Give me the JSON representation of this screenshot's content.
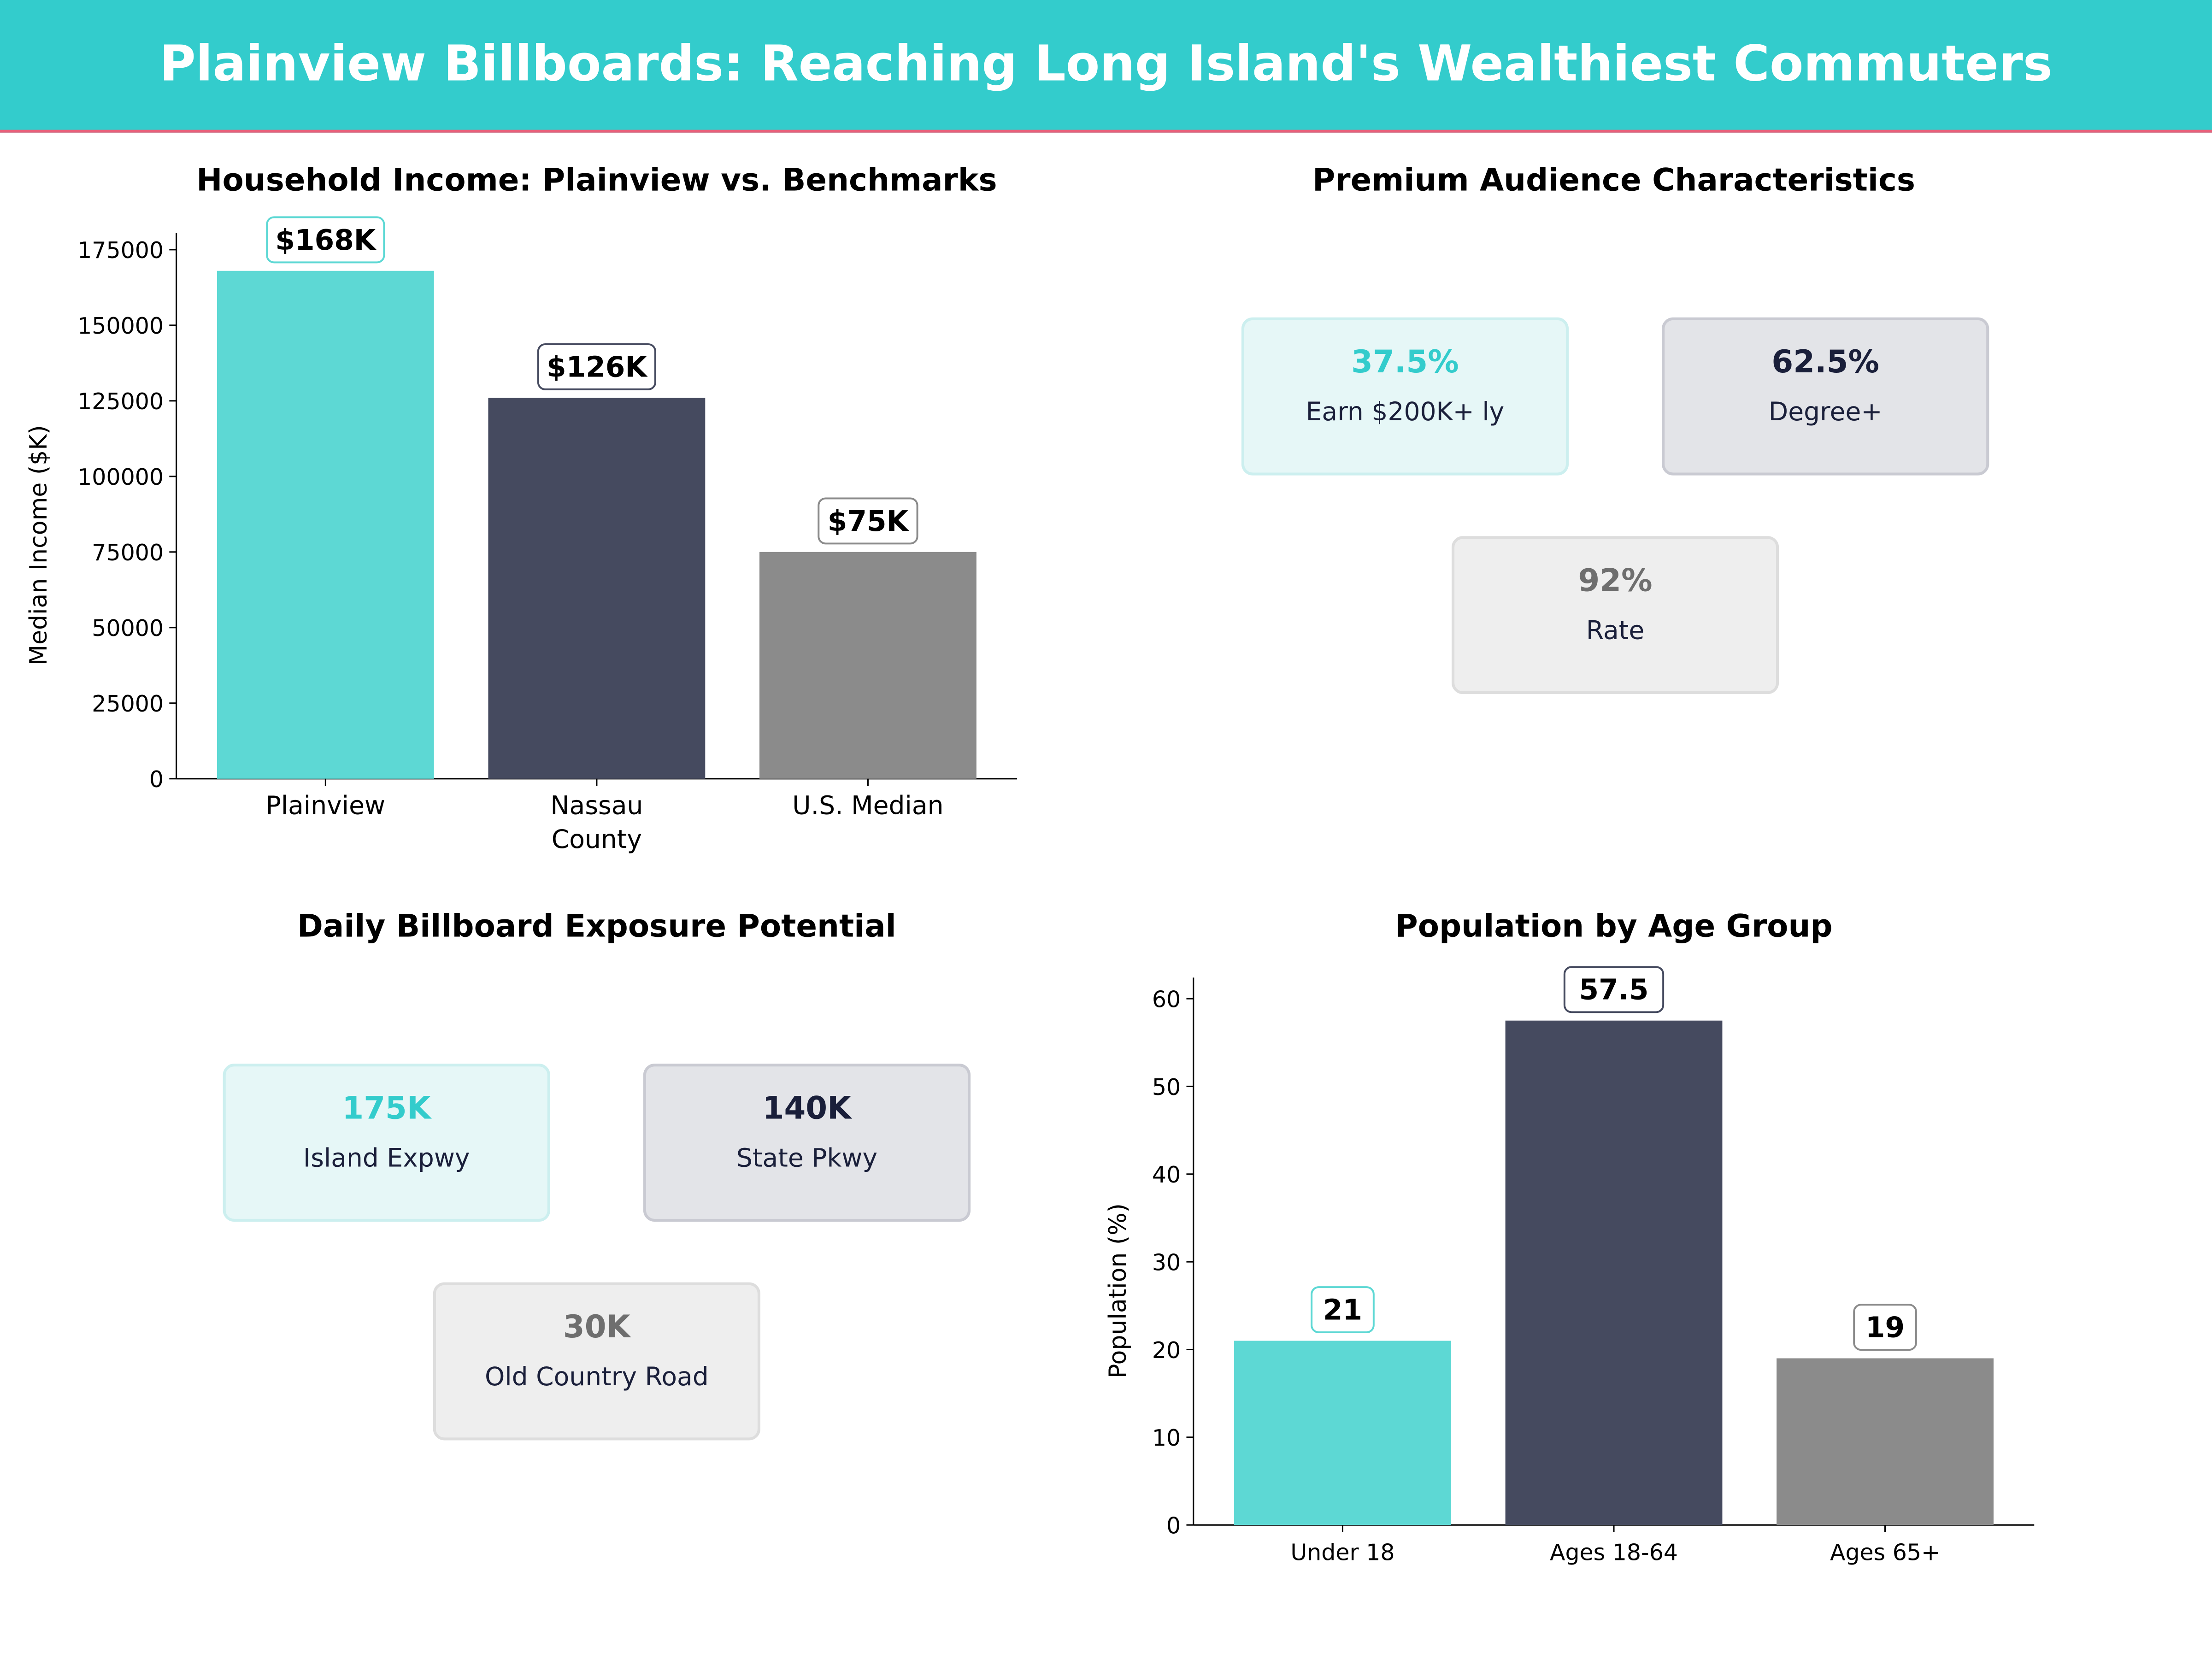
{
  "title": "Plainview Billboards: Reaching Long Island's Wealthiest Commuters",
  "colors": {
    "header": "#33CCCC",
    "accent_line": "#E8607A",
    "teal": "#5DD8D4",
    "navy": "#454A5F",
    "gray": "#8B8B8B"
  },
  "chart_data": [
    {
      "type": "bar",
      "title": "Household Income: Plainview vs. Benchmarks",
      "xlabel": "",
      "ylabel": "Median Income ($K)",
      "categories": [
        "Plainview",
        "Nassau County",
        "U.S. Median"
      ],
      "values": [
        168000,
        126000,
        75000
      ],
      "data_labels": [
        "$168K",
        "$126K",
        "$75K"
      ],
      "bar_colors": [
        "#5DD8D4",
        "#454A5F",
        "#8B8B8B"
      ],
      "ylim": [
        0,
        180600
      ],
      "yticks": [
        0,
        25000,
        50000,
        75000,
        100000,
        125000,
        150000,
        175000
      ],
      "grid": false
    },
    {
      "type": "bar",
      "title": "Population by Age Group",
      "xlabel": "",
      "ylabel": "Population (%)",
      "categories": [
        "Under 18",
        "Ages 18-64",
        "Ages 65+"
      ],
      "values": [
        21,
        57.5,
        19
      ],
      "data_labels": [
        "21",
        "57.5",
        "19"
      ],
      "bar_colors": [
        "#5DD8D4",
        "#454A5F",
        "#8B8B8B"
      ],
      "ylim": [
        0,
        62.4
      ],
      "yticks": [
        0,
        10,
        20,
        30,
        40,
        50,
        60
      ],
      "grid": false
    }
  ],
  "audience": {
    "title": "Premium Audience Characteristics",
    "cards": [
      {
        "value": "37.5%",
        "label": "Earn $200K+ ly"
      },
      {
        "value": "62.5%",
        "label": "Degree+"
      },
      {
        "value": "92%",
        "label": "Rate"
      }
    ]
  },
  "exposure": {
    "title": "Daily Billboard Exposure Potential",
    "cards": [
      {
        "value": "175K",
        "label": "Island Expwy"
      },
      {
        "value": "140K",
        "label": "State Pkwy"
      },
      {
        "value": "30K",
        "label": "Old Country Road"
      }
    ]
  }
}
